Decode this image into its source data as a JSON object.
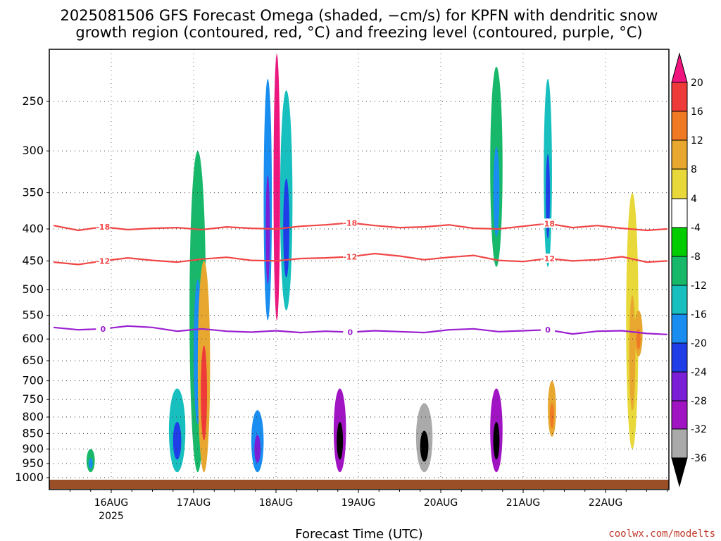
{
  "chart_data": {
    "type": "heatmap",
    "title_lines": [
      "2025081506 GFS Forecast Omega (shaded, −cm/s) for KPFN with dendritic snow",
      "growth region (contoured, red, °C) and freezing level (contoured, purple, °C)"
    ],
    "xlabel": "Forecast Time (UTC)",
    "ylabel": "",
    "x_ticks": [
      "16AUG",
      "17AUG",
      "18AUG",
      "19AUG",
      "20AUG",
      "21AUG",
      "22AUG"
    ],
    "x_year": "2025",
    "x_range_days": [
      15.3,
      22.75
    ],
    "y_scale": "log-pressure (inverted)",
    "y_ticks": [
      250,
      300,
      350,
      400,
      450,
      500,
      550,
      600,
      650,
      700,
      750,
      800,
      850,
      900,
      950,
      1000
    ],
    "y_range_hpa": [
      200,
      1020
    ],
    "grid": "dotted, on",
    "colorbar": {
      "labels": [
        "20",
        "16",
        "12",
        "8",
        "4",
        "-4",
        "-8",
        "-12",
        "-16",
        "-20",
        "-24",
        "-28",
        "-32",
        "-36"
      ],
      "colors": [
        "#f0147f",
        "#ef3a3a",
        "#f07a23",
        "#e8a82f",
        "#e8d83a",
        "#ffffff",
        "#00cc00",
        "#18b86b",
        "#17bfbf",
        "#1a8ef0",
        "#1f3ee8",
        "#7a1fd6",
        "#a114c4",
        "#aaaaaa",
        "#000000"
      ]
    },
    "contours": [
      {
        "name": "dendritic -18",
        "color": "#f04646",
        "label": "-18",
        "x": [
          15.3,
          15.6,
          15.9,
          16.2,
          16.5,
          16.8,
          17.1,
          17.4,
          17.7,
          18.0,
          18.3,
          18.6,
          18.9,
          19.2,
          19.5,
          19.8,
          20.1,
          20.4,
          20.7,
          21.0,
          21.3,
          21.6,
          21.9,
          22.2,
          22.5,
          22.75
        ],
        "p": [
          395,
          402,
          397,
          401,
          399,
          398,
          401,
          397,
          399,
          400,
          396,
          394,
          391,
          395,
          398,
          397,
          394,
          399,
          400,
          396,
          392,
          398,
          395,
          399,
          402,
          400
        ]
      },
      {
        "name": "dendritic -12",
        "color": "#f04646",
        "label": "-12",
        "x": [
          15.3,
          15.6,
          15.9,
          16.2,
          16.5,
          16.8,
          17.1,
          17.4,
          17.7,
          18.0,
          18.3,
          18.6,
          18.9,
          19.2,
          19.5,
          19.8,
          20.1,
          20.4,
          20.7,
          21.0,
          21.3,
          21.6,
          21.9,
          22.2,
          22.5,
          22.75
        ],
        "p": [
          452,
          456,
          450,
          445,
          449,
          452,
          447,
          444,
          449,
          450,
          446,
          445,
          443,
          438,
          442,
          448,
          444,
          441,
          449,
          451,
          446,
          450,
          448,
          443,
          452,
          450
        ]
      },
      {
        "name": "freezing level 0",
        "color": "#9a1fd0",
        "label": "0",
        "x": [
          15.3,
          15.6,
          15.9,
          16.2,
          16.5,
          16.8,
          17.1,
          17.4,
          17.7,
          18.0,
          18.3,
          18.6,
          18.9,
          19.2,
          19.5,
          19.8,
          20.1,
          20.4,
          20.7,
          21.0,
          21.3,
          21.6,
          21.9,
          22.2,
          22.5,
          22.75
        ],
        "p": [
          575,
          580,
          578,
          572,
          575,
          583,
          578,
          583,
          585,
          582,
          586,
          583,
          585,
          582,
          584,
          586,
          580,
          578,
          584,
          582,
          580,
          589,
          583,
          582,
          588,
          590
        ]
      }
    ],
    "shaded_features": [
      {
        "x": [
          15.7,
          15.8
        ],
        "p": [
          900,
          980
        ],
        "value": -10
      },
      {
        "x": [
          16.7,
          16.9
        ],
        "p": [
          720,
          980
        ],
        "value": -14
      },
      {
        "x": [
          16.95,
          17.15
        ],
        "p": [
          300,
          980
        ],
        "value": -10
      },
      {
        "x": [
          17.05,
          17.2
        ],
        "p": [
          450,
          980
        ],
        "value": 10
      },
      {
        "x": [
          17.7,
          17.85
        ],
        "p": [
          780,
          980
        ],
        "value": -18
      },
      {
        "x": [
          17.85,
          17.95
        ],
        "p": [
          230,
          560
        ],
        "value": -16
      },
      {
        "x": [
          17.97,
          18.05
        ],
        "p": [
          210,
          560
        ],
        "value": 22
      },
      {
        "x": [
          18.05,
          18.2
        ],
        "p": [
          240,
          540
        ],
        "value": -12
      },
      {
        "x": [
          18.7,
          18.85
        ],
        "p": [
          720,
          980
        ],
        "value": -30
      },
      {
        "x": [
          19.7,
          19.9
        ],
        "p": [
          760,
          980
        ],
        "value": -34
      },
      {
        "x": [
          20.6,
          20.75
        ],
        "p": [
          720,
          980
        ],
        "value": -30
      },
      {
        "x": [
          20.6,
          20.75
        ],
        "p": [
          220,
          460
        ],
        "value": -8
      },
      {
        "x": [
          21.25,
          21.35
        ],
        "p": [
          230,
          460
        ],
        "value": -14
      },
      {
        "x": [
          21.3,
          21.4
        ],
        "p": [
          700,
          860
        ],
        "value": 9
      },
      {
        "x": [
          22.25,
          22.4
        ],
        "p": [
          350,
          900
        ],
        "value": 5
      },
      {
        "x": [
          22.35,
          22.45
        ],
        "p": [
          540,
          640
        ],
        "value": 9
      }
    ]
  },
  "credit": "coolwx.com/modelts"
}
